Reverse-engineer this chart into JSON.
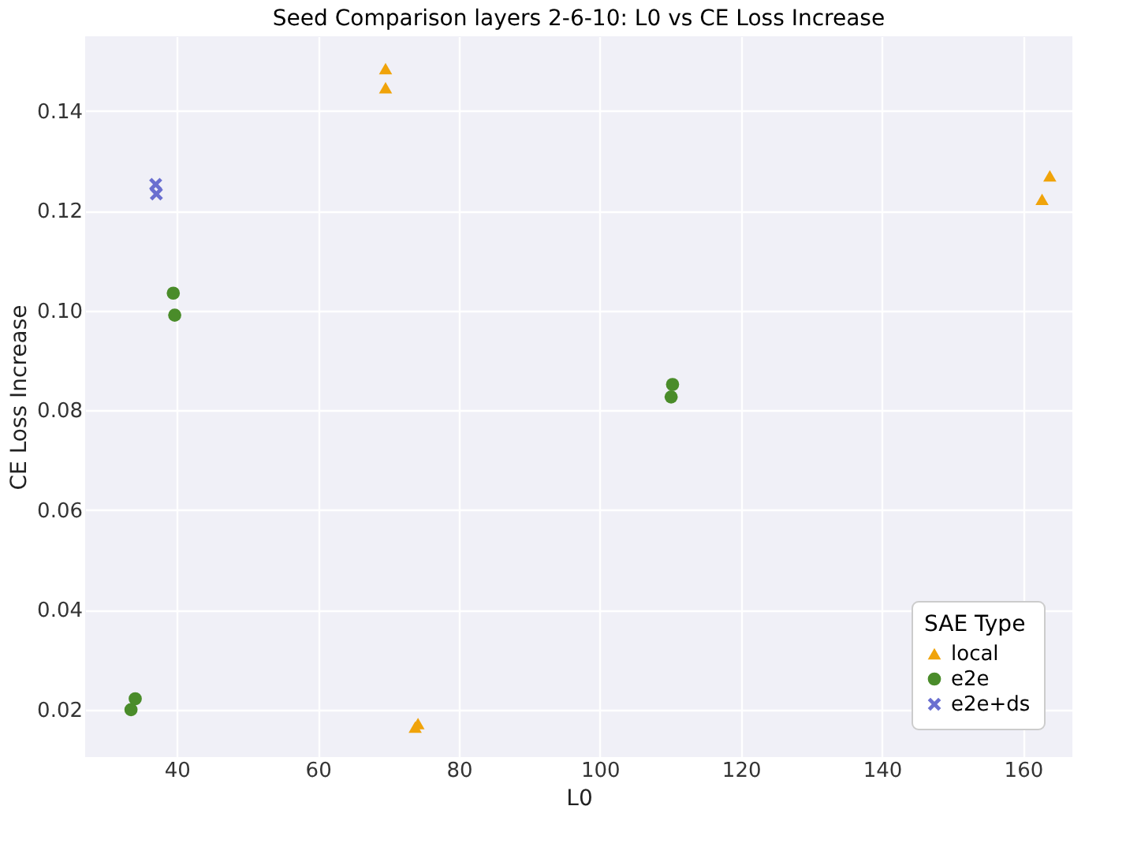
{
  "chart_data": {
    "type": "scatter",
    "title": "Seed Comparison layers 2-6-10: L0 vs CE Loss Increase",
    "xlabel": "L0",
    "ylabel": "CE Loss Increase",
    "legend_title": "SAE Type",
    "legend": "bottom right",
    "grid": true,
    "xlim": [
      27,
      167
    ],
    "ylim": [
      0.0105,
      0.155
    ],
    "xticks": [
      40,
      60,
      80,
      100,
      120,
      140,
      160
    ],
    "yticks": [
      0.02,
      0.04,
      0.06,
      0.08,
      {
        "value": 0.1,
        "label": "0.10"
      },
      0.12,
      0.14
    ],
    "series": [
      {
        "name": "local",
        "color": "#f0a30a",
        "marker": "triangle",
        "x": [
          69.6,
          69.6,
          73.8,
          74.2,
          162.7,
          163.8
        ],
        "values": [
          0.1485,
          0.1447,
          0.0165,
          0.0172,
          0.1223,
          0.127
        ]
      },
      {
        "name": "e2e",
        "color": "#4a8c2a",
        "marker": "circle",
        "x": [
          33.5,
          34.1,
          39.5,
          39.7,
          110.3,
          110.1
        ],
        "values": [
          0.02,
          0.0222,
          0.1035,
          0.0991,
          0.0852,
          0.0827
        ]
      },
      {
        "name": "e2e+ds",
        "color": "#6a6fd0",
        "marker": "cross",
        "x": [
          37.0,
          37.1
        ],
        "values": [
          0.1253,
          0.1234
        ]
      }
    ]
  }
}
